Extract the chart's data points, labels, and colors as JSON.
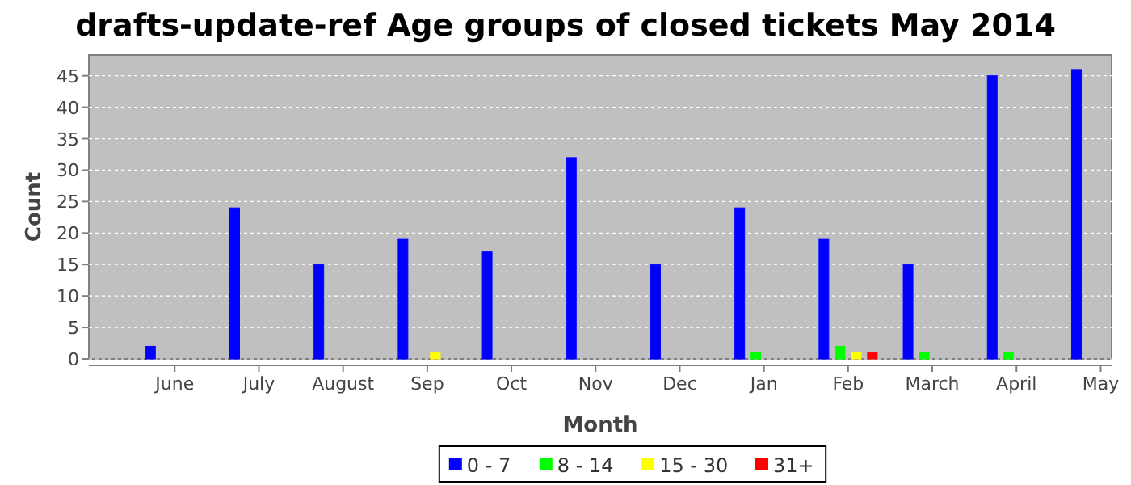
{
  "chart_data": {
    "type": "bar",
    "title": "drafts-update-ref Age groups of closed tickets May 2014",
    "xlabel": "Month",
    "ylabel": "Count",
    "categories": [
      "June",
      "July",
      "August",
      "Sep",
      "Oct",
      "Nov",
      "Dec",
      "Jan",
      "Feb",
      "March",
      "April",
      "May"
    ],
    "series": [
      {
        "name": "0 - 7",
        "color": "#0000ff",
        "values": [
          2,
          24,
          15,
          19,
          17,
          32,
          15,
          24,
          19,
          15,
          45,
          46
        ]
      },
      {
        "name": "8 - 14",
        "color": "#00ff00",
        "values": [
          0,
          0,
          0,
          0,
          0,
          0,
          0,
          1,
          2,
          1,
          1,
          0
        ]
      },
      {
        "name": "15 - 30",
        "color": "#ffff00",
        "values": [
          0,
          0,
          0,
          1,
          0,
          0,
          0,
          0,
          1,
          0,
          0,
          0
        ]
      },
      {
        "name": "31+",
        "color": "#ff0000",
        "values": [
          0,
          0,
          0,
          0,
          0,
          0,
          0,
          0,
          1,
          0,
          0,
          0
        ]
      }
    ],
    "ylim": [
      0,
      48.3
    ],
    "yticks": [
      0,
      5,
      10,
      15,
      20,
      25,
      30,
      35,
      40,
      45
    ],
    "grid": "y",
    "legend": "bottom"
  }
}
